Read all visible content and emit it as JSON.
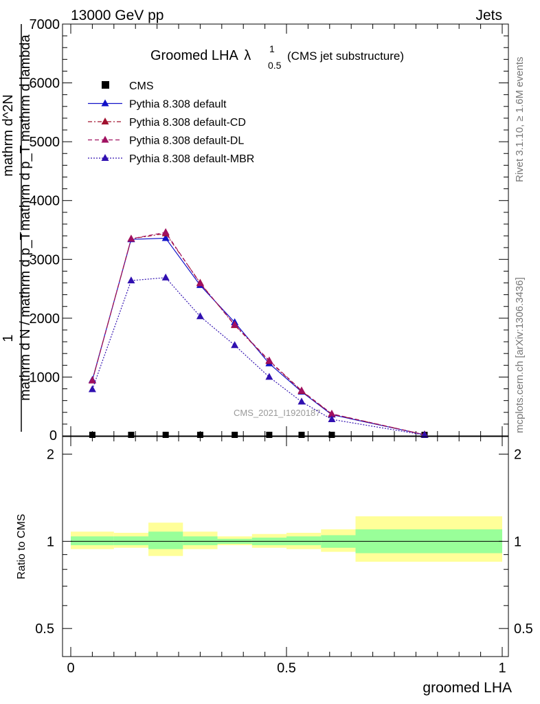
{
  "header": {
    "left": "13000 GeV pp",
    "right": "Jets"
  },
  "side_labels": {
    "rivet": "Rivet 3.1.10, ≥ 1.6M events",
    "mcplots": "mcplots.cern.ch [arXiv:1306.3436]"
  },
  "watermark": "CMS_2021_I1920187",
  "chart_data": [
    {
      "type": "line",
      "title": "Groomed LHA",
      "title_symbol": "λ",
      "title_sub": "0.5",
      "title_sup": "1",
      "title_note": "(CMS jet substructure)",
      "ylabel_parts": [
        "1",
        "mathrm d N / mathrm d p_T",
        "mathrm d^2N",
        "mathrm d p_T mathrm d lambda"
      ],
      "xlim": [
        0,
        1
      ],
      "ylim": [
        0,
        7000
      ],
      "yticks": [
        1000,
        2000,
        3000,
        4000,
        5000,
        6000,
        7000
      ],
      "legend_position": "top-left",
      "bins": [
        0.0,
        0.1,
        0.18,
        0.26,
        0.34,
        0.42,
        0.5,
        0.58,
        0.66,
        1.0
      ],
      "x": [
        0.05,
        0.14,
        0.22,
        0.3,
        0.38,
        0.46,
        0.535,
        0.605,
        0.82
      ],
      "series": [
        {
          "name": "CMS",
          "color": "#000000",
          "marker": "square",
          "dash": "none",
          "values": [
            0,
            0,
            0,
            0,
            0,
            0,
            0,
            0,
            0
          ]
        },
        {
          "name": "Pythia 8.308 default",
          "color": "#1010c8",
          "marker": "triangle",
          "dash": "none",
          "values": [
            950,
            3340,
            3360,
            2560,
            1930,
            1230,
            750,
            360,
            20
          ]
        },
        {
          "name": "Pythia 8.308 default-CD",
          "color": "#a0102e",
          "marker": "triangle",
          "dash": "6,3,2,3",
          "values": [
            940,
            3350,
            3440,
            2600,
            1880,
            1270,
            760,
            370,
            20
          ]
        },
        {
          "name": "Pythia 8.308 default-DL",
          "color": "#a01060",
          "marker": "triangle",
          "dash": "6,4",
          "values": [
            940,
            3350,
            3460,
            2590,
            1890,
            1280,
            770,
            375,
            20
          ]
        },
        {
          "name": "Pythia 8.308 default-MBR",
          "color": "#3010b0",
          "marker": "triangle",
          "dash": "2,2",
          "values": [
            790,
            2640,
            2690,
            2030,
            1540,
            1000,
            580,
            280,
            15
          ]
        }
      ]
    },
    {
      "type": "area",
      "ylabel": "Ratio to CMS",
      "xlabel": "groomed LHA",
      "xlim": [
        0,
        1
      ],
      "xticks": [
        0,
        0.5,
        1
      ],
      "xtick_labels": [
        "0",
        "0.5",
        "1"
      ],
      "ylim": [
        0.4,
        2.3
      ],
      "yticks": [
        0.5,
        1,
        2
      ],
      "ytick_labels": [
        "0.5",
        "1",
        "2"
      ],
      "scale": "log",
      "bins": [
        0.0,
        0.1,
        0.18,
        0.26,
        0.34,
        0.42,
        0.5,
        0.58,
        0.66,
        1.0
      ],
      "band_outer": {
        "color": "#ffff99",
        "lo": [
          0.94,
          0.95,
          0.89,
          0.94,
          0.97,
          0.95,
          0.94,
          0.92,
          0.85
        ],
        "hi": [
          1.08,
          1.07,
          1.16,
          1.08,
          1.04,
          1.06,
          1.07,
          1.1,
          1.22
        ]
      },
      "band_inner": {
        "color": "#99ff99",
        "lo": [
          0.97,
          0.97,
          0.94,
          0.97,
          0.98,
          0.97,
          0.97,
          0.95,
          0.91
        ],
        "hi": [
          1.04,
          1.04,
          1.08,
          1.04,
          1.02,
          1.03,
          1.04,
          1.05,
          1.1
        ]
      },
      "reference": 1
    }
  ]
}
